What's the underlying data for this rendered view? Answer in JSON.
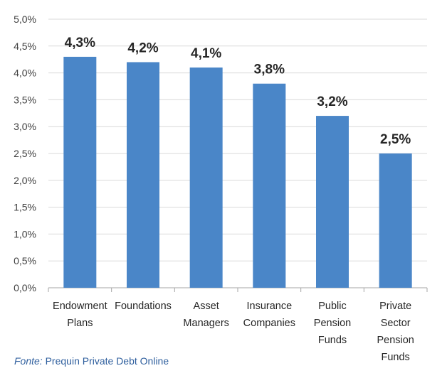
{
  "chart_data": {
    "type": "bar",
    "categories": [
      [
        "Endowment",
        "Plans"
      ],
      [
        "Foundations"
      ],
      [
        "Asset",
        "Managers"
      ],
      [
        "Insurance",
        "Companies"
      ],
      [
        "Public",
        "Pension",
        "Funds"
      ],
      [
        "Private",
        "Sector",
        "Pension",
        "Funds"
      ]
    ],
    "values": [
      4.3,
      4.2,
      4.1,
      3.8,
      3.2,
      2.5
    ],
    "value_labels": [
      "4,3%",
      "4,2%",
      "4,1%",
      "3,8%",
      "3,2%",
      "2,5%"
    ],
    "y_ticks": [
      "0,0%",
      "0,5%",
      "1,0%",
      "1,5%",
      "2,0%",
      "2,5%",
      "3,0%",
      "3,5%",
      "4,0%",
      "4,5%",
      "5,0%"
    ],
    "ylim": [
      0,
      5
    ],
    "grid": true,
    "bar_color": "#4a86c8",
    "title": "",
    "xlabel": "",
    "ylabel": ""
  },
  "source": {
    "label": "Fonte:",
    "text": "Prequin Private Debt Online"
  }
}
